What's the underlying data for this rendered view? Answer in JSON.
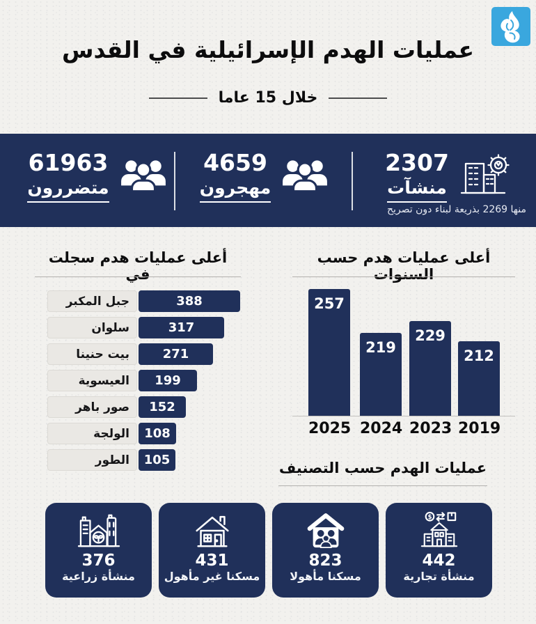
{
  "brand": {
    "logo_icon": "aljazeera-logo-icon",
    "logo_color": "#3aa7de"
  },
  "header": {
    "title": "عمليات الهدم الإسرائيلية في القدس",
    "subtitle": "خلال 15 عاما"
  },
  "colors": {
    "navy": "#20305a",
    "background": "#f2f1ee",
    "label_box": "#eae8e4",
    "logo_blue": "#3aa7de"
  },
  "stats": [
    {
      "value": "61963",
      "label": "متضررون",
      "icon": "people-group-icon"
    },
    {
      "value": "4659",
      "label": "مهجرون",
      "icon": "people-group-icon"
    },
    {
      "value": "2307",
      "label": "منشآت",
      "icon": "building-gear-icon",
      "footnote": "منها 2269 بذريعة لبناء دون تصريح"
    }
  ],
  "chart_data": [
    {
      "type": "bar",
      "orientation": "horizontal",
      "title": "أعلى عمليات هدم سجلت في",
      "categories": [
        "جبل المكبر",
        "سلوان",
        "بيت حنينا",
        "العيسوية",
        "صور باهر",
        "الولجة",
        "الطور"
      ],
      "values": [
        388,
        317,
        271,
        199,
        152,
        108,
        105
      ],
      "value_labels_inside_bars": true,
      "bar_color": "#20305a"
    },
    {
      "type": "bar",
      "orientation": "vertical",
      "title": "أعلى عمليات هدم حسب السنوات",
      "categories": [
        "2025",
        "2024",
        "2023",
        "2019"
      ],
      "values": [
        257,
        219,
        229,
        212
      ],
      "value_labels_inside_bars": true,
      "bar_color": "#20305a",
      "note": "categories listed in displayed left-to-right order"
    }
  ],
  "classification": {
    "title": "عمليات الهدم حسب التصنيف",
    "cards": [
      {
        "value": "376",
        "label": "منشأة زراعية",
        "icon": "farm-building-icon"
      },
      {
        "value": "431",
        "label": "مسكنا غير مأهول",
        "icon": "house-icon"
      },
      {
        "value": "823",
        "label": "مسكنا مأهولا",
        "icon": "house-family-icon"
      },
      {
        "value": "442",
        "label": "منشأة تجارية",
        "icon": "commerce-building-icon"
      }
    ]
  }
}
